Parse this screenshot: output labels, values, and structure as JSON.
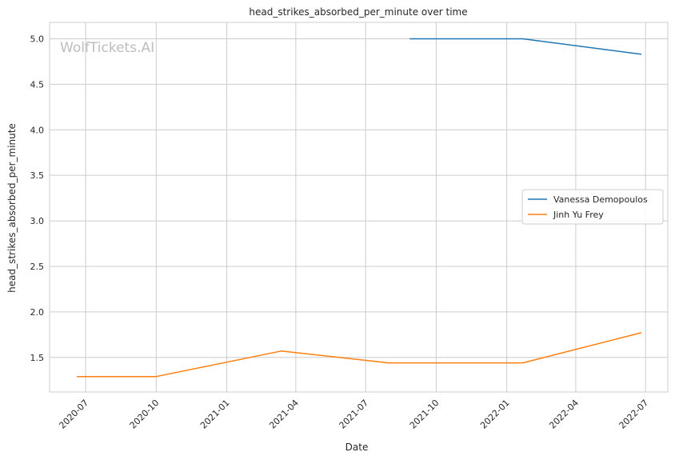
{
  "chart_data": {
    "type": "line",
    "title": "head_strikes_absorbed_per_minute over time",
    "xlabel": "Date",
    "ylabel": "head_strikes_absorbed_per_minute",
    "watermark": "WolfTickets.AI",
    "xlim": [
      "2020-05-15",
      "2022-07-30"
    ],
    "ylim": [
      1.12,
      5.18
    ],
    "x_ticks": [
      {
        "date": "2020-07-01",
        "label": "2020-07"
      },
      {
        "date": "2020-10-01",
        "label": "2020-10"
      },
      {
        "date": "2021-01-01",
        "label": "2021-01"
      },
      {
        "date": "2021-04-01",
        "label": "2021-04"
      },
      {
        "date": "2021-07-01",
        "label": "2021-07"
      },
      {
        "date": "2021-10-01",
        "label": "2021-10"
      },
      {
        "date": "2022-01-01",
        "label": "2022-01"
      },
      {
        "date": "2022-04-01",
        "label": "2022-04"
      },
      {
        "date": "2022-07-01",
        "label": "2022-07"
      }
    ],
    "y_ticks": [
      1.5,
      2.0,
      2.5,
      3.0,
      3.5,
      4.0,
      4.5,
      5.0
    ],
    "y_tick_labels": [
      "1.5",
      "2.0",
      "2.5",
      "3.0",
      "3.5",
      "4.0",
      "4.5",
      "5.0"
    ],
    "grid": true,
    "legend_position": "center-right",
    "series": [
      {
        "name": "Vanessa Demopoulos",
        "color": "#1f77b4",
        "points": [
          {
            "x": "2021-08-28",
            "y": 5.0
          },
          {
            "x": "2022-01-22",
            "y": 5.0
          },
          {
            "x": "2022-06-25",
            "y": 4.83
          }
        ]
      },
      {
        "name": "Jinh Yu Frey",
        "color": "#ff7f0e",
        "points": [
          {
            "x": "2020-06-20",
            "y": 1.29
          },
          {
            "x": "2020-10-01",
            "y": 1.29
          },
          {
            "x": "2021-03-13",
            "y": 1.57
          },
          {
            "x": "2021-07-31",
            "y": 1.44
          },
          {
            "x": "2022-01-22",
            "y": 1.44
          },
          {
            "x": "2022-06-25",
            "y": 1.77
          }
        ]
      }
    ]
  }
}
